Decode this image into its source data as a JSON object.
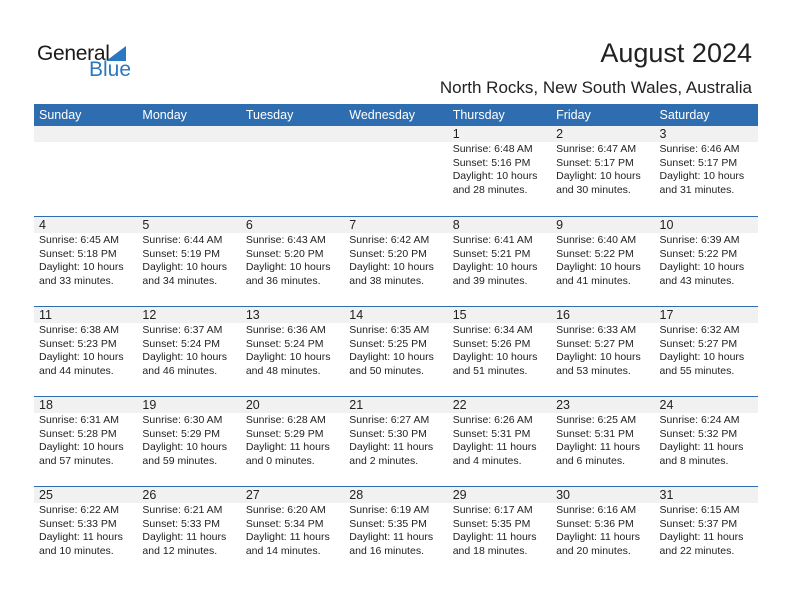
{
  "logo": {
    "general": "General",
    "blue": "Blue"
  },
  "header": {
    "title": "August 2024",
    "location": "North Rocks, New South Wales, Australia"
  },
  "days": [
    "Sunday",
    "Monday",
    "Tuesday",
    "Wednesday",
    "Thursday",
    "Friday",
    "Saturday"
  ],
  "colors": {
    "header_bg": "#2e6db0",
    "band": "#f1f1f1",
    "logo_blue": "#2a78c2"
  },
  "weeks": [
    [
      null,
      null,
      null,
      null,
      {
        "day": "1",
        "sunrise": "Sunrise: 6:48 AM",
        "sunset": "Sunset: 5:16 PM",
        "daylight1": "Daylight: 10 hours",
        "daylight2": "and 28 minutes."
      },
      {
        "day": "2",
        "sunrise": "Sunrise: 6:47 AM",
        "sunset": "Sunset: 5:17 PM",
        "daylight1": "Daylight: 10 hours",
        "daylight2": "and 30 minutes."
      },
      {
        "day": "3",
        "sunrise": "Sunrise: 6:46 AM",
        "sunset": "Sunset: 5:17 PM",
        "daylight1": "Daylight: 10 hours",
        "daylight2": "and 31 minutes."
      }
    ],
    [
      {
        "day": "4",
        "sunrise": "Sunrise: 6:45 AM",
        "sunset": "Sunset: 5:18 PM",
        "daylight1": "Daylight: 10 hours",
        "daylight2": "and 33 minutes."
      },
      {
        "day": "5",
        "sunrise": "Sunrise: 6:44 AM",
        "sunset": "Sunset: 5:19 PM",
        "daylight1": "Daylight: 10 hours",
        "daylight2": "and 34 minutes."
      },
      {
        "day": "6",
        "sunrise": "Sunrise: 6:43 AM",
        "sunset": "Sunset: 5:20 PM",
        "daylight1": "Daylight: 10 hours",
        "daylight2": "and 36 minutes."
      },
      {
        "day": "7",
        "sunrise": "Sunrise: 6:42 AM",
        "sunset": "Sunset: 5:20 PM",
        "daylight1": "Daylight: 10 hours",
        "daylight2": "and 38 minutes."
      },
      {
        "day": "8",
        "sunrise": "Sunrise: 6:41 AM",
        "sunset": "Sunset: 5:21 PM",
        "daylight1": "Daylight: 10 hours",
        "daylight2": "and 39 minutes."
      },
      {
        "day": "9",
        "sunrise": "Sunrise: 6:40 AM",
        "sunset": "Sunset: 5:22 PM",
        "daylight1": "Daylight: 10 hours",
        "daylight2": "and 41 minutes."
      },
      {
        "day": "10",
        "sunrise": "Sunrise: 6:39 AM",
        "sunset": "Sunset: 5:22 PM",
        "daylight1": "Daylight: 10 hours",
        "daylight2": "and 43 minutes."
      }
    ],
    [
      {
        "day": "11",
        "sunrise": "Sunrise: 6:38 AM",
        "sunset": "Sunset: 5:23 PM",
        "daylight1": "Daylight: 10 hours",
        "daylight2": "and 44 minutes."
      },
      {
        "day": "12",
        "sunrise": "Sunrise: 6:37 AM",
        "sunset": "Sunset: 5:24 PM",
        "daylight1": "Daylight: 10 hours",
        "daylight2": "and 46 minutes."
      },
      {
        "day": "13",
        "sunrise": "Sunrise: 6:36 AM",
        "sunset": "Sunset: 5:24 PM",
        "daylight1": "Daylight: 10 hours",
        "daylight2": "and 48 minutes."
      },
      {
        "day": "14",
        "sunrise": "Sunrise: 6:35 AM",
        "sunset": "Sunset: 5:25 PM",
        "daylight1": "Daylight: 10 hours",
        "daylight2": "and 50 minutes."
      },
      {
        "day": "15",
        "sunrise": "Sunrise: 6:34 AM",
        "sunset": "Sunset: 5:26 PM",
        "daylight1": "Daylight: 10 hours",
        "daylight2": "and 51 minutes."
      },
      {
        "day": "16",
        "sunrise": "Sunrise: 6:33 AM",
        "sunset": "Sunset: 5:27 PM",
        "daylight1": "Daylight: 10 hours",
        "daylight2": "and 53 minutes."
      },
      {
        "day": "17",
        "sunrise": "Sunrise: 6:32 AM",
        "sunset": "Sunset: 5:27 PM",
        "daylight1": "Daylight: 10 hours",
        "daylight2": "and 55 minutes."
      }
    ],
    [
      {
        "day": "18",
        "sunrise": "Sunrise: 6:31 AM",
        "sunset": "Sunset: 5:28 PM",
        "daylight1": "Daylight: 10 hours",
        "daylight2": "and 57 minutes."
      },
      {
        "day": "19",
        "sunrise": "Sunrise: 6:30 AM",
        "sunset": "Sunset: 5:29 PM",
        "daylight1": "Daylight: 10 hours",
        "daylight2": "and 59 minutes."
      },
      {
        "day": "20",
        "sunrise": "Sunrise: 6:28 AM",
        "sunset": "Sunset: 5:29 PM",
        "daylight1": "Daylight: 11 hours",
        "daylight2": "and 0 minutes."
      },
      {
        "day": "21",
        "sunrise": "Sunrise: 6:27 AM",
        "sunset": "Sunset: 5:30 PM",
        "daylight1": "Daylight: 11 hours",
        "daylight2": "and 2 minutes."
      },
      {
        "day": "22",
        "sunrise": "Sunrise: 6:26 AM",
        "sunset": "Sunset: 5:31 PM",
        "daylight1": "Daylight: 11 hours",
        "daylight2": "and 4 minutes."
      },
      {
        "day": "23",
        "sunrise": "Sunrise: 6:25 AM",
        "sunset": "Sunset: 5:31 PM",
        "daylight1": "Daylight: 11 hours",
        "daylight2": "and 6 minutes."
      },
      {
        "day": "24",
        "sunrise": "Sunrise: 6:24 AM",
        "sunset": "Sunset: 5:32 PM",
        "daylight1": "Daylight: 11 hours",
        "daylight2": "and 8 minutes."
      }
    ],
    [
      {
        "day": "25",
        "sunrise": "Sunrise: 6:22 AM",
        "sunset": "Sunset: 5:33 PM",
        "daylight1": "Daylight: 11 hours",
        "daylight2": "and 10 minutes."
      },
      {
        "day": "26",
        "sunrise": "Sunrise: 6:21 AM",
        "sunset": "Sunset: 5:33 PM",
        "daylight1": "Daylight: 11 hours",
        "daylight2": "and 12 minutes."
      },
      {
        "day": "27",
        "sunrise": "Sunrise: 6:20 AM",
        "sunset": "Sunset: 5:34 PM",
        "daylight1": "Daylight: 11 hours",
        "daylight2": "and 14 minutes."
      },
      {
        "day": "28",
        "sunrise": "Sunrise: 6:19 AM",
        "sunset": "Sunset: 5:35 PM",
        "daylight1": "Daylight: 11 hours",
        "daylight2": "and 16 minutes."
      },
      {
        "day": "29",
        "sunrise": "Sunrise: 6:17 AM",
        "sunset": "Sunset: 5:35 PM",
        "daylight1": "Daylight: 11 hours",
        "daylight2": "and 18 minutes."
      },
      {
        "day": "30",
        "sunrise": "Sunrise: 6:16 AM",
        "sunset": "Sunset: 5:36 PM",
        "daylight1": "Daylight: 11 hours",
        "daylight2": "and 20 minutes."
      },
      {
        "day": "31",
        "sunrise": "Sunrise: 6:15 AM",
        "sunset": "Sunset: 5:37 PM",
        "daylight1": "Daylight: 11 hours",
        "daylight2": "and 22 minutes."
      }
    ]
  ]
}
